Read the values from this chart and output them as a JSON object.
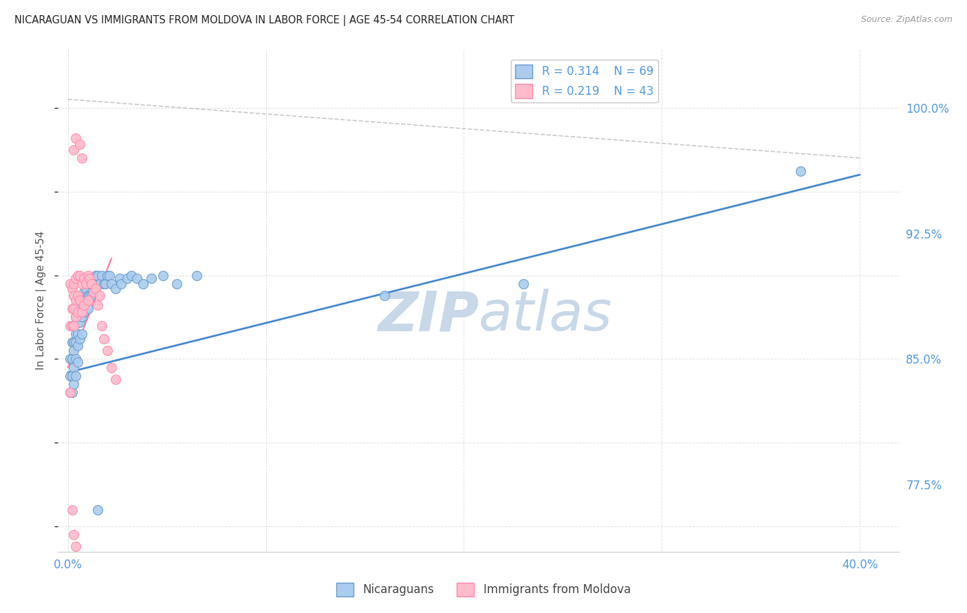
{
  "title": "NICARAGUAN VS IMMIGRANTS FROM MOLDOVA IN LABOR FORCE | AGE 45-54 CORRELATION CHART",
  "source": "Source: ZipAtlas.com",
  "ylabel": "In Labor Force | Age 45-54",
  "yticks": [
    0.775,
    0.85,
    0.925,
    1.0
  ],
  "ytick_labels": [
    "77.5%",
    "85.0%",
    "92.5%",
    "100.0%"
  ],
  "xticks": [
    0.0,
    0.1,
    0.2,
    0.3,
    0.4
  ],
  "xtick_labels": [
    "0.0%",
    "",
    "",
    "",
    "40.0%"
  ],
  "xlim": [
    -0.005,
    0.42
  ],
  "ylim": [
    0.735,
    1.035
  ],
  "nicaraguan_color": "#AACCEE",
  "nicaragua_edge_color": "#6699CC",
  "moldova_color": "#FFBBCC",
  "moldova_edge_color": "#FF88AA",
  "trend_nicaraguan_color": "#4488CC",
  "trend_moldova_color": "#FF88AA",
  "trend_diagonal_color": "#BBBBBB",
  "legend_R_nicaraguan": "R = 0.314",
  "legend_N_nicaraguan": "N = 69",
  "legend_R_moldova": "R = 0.219",
  "legend_N_moldova": "N = 43",
  "nicaraguan_x": [
    0.001,
    0.001,
    0.001,
    0.002,
    0.002,
    0.002,
    0.002,
    0.003,
    0.003,
    0.003,
    0.003,
    0.003,
    0.004,
    0.004,
    0.004,
    0.004,
    0.004,
    0.005,
    0.005,
    0.005,
    0.005,
    0.005,
    0.006,
    0.006,
    0.006,
    0.006,
    0.007,
    0.007,
    0.007,
    0.007,
    0.008,
    0.008,
    0.008,
    0.009,
    0.009,
    0.01,
    0.01,
    0.01,
    0.011,
    0.011,
    0.012,
    0.012,
    0.013,
    0.013,
    0.014,
    0.014,
    0.015,
    0.016,
    0.017,
    0.018,
    0.019,
    0.02,
    0.021,
    0.022,
    0.024,
    0.026,
    0.027,
    0.03,
    0.032,
    0.035,
    0.038,
    0.042,
    0.048,
    0.055,
    0.065,
    0.16,
    0.23,
    0.37,
    0.015
  ],
  "nicaraguan_y": [
    0.85,
    0.84,
    0.83,
    0.86,
    0.85,
    0.84,
    0.83,
    0.87,
    0.86,
    0.855,
    0.845,
    0.835,
    0.875,
    0.865,
    0.86,
    0.85,
    0.84,
    0.882,
    0.872,
    0.865,
    0.858,
    0.848,
    0.886,
    0.878,
    0.872,
    0.862,
    0.888,
    0.882,
    0.875,
    0.865,
    0.89,
    0.885,
    0.878,
    0.892,
    0.885,
    0.895,
    0.888,
    0.88,
    0.895,
    0.888,
    0.895,
    0.888,
    0.898,
    0.89,
    0.9,
    0.892,
    0.9,
    0.895,
    0.9,
    0.895,
    0.895,
    0.9,
    0.9,
    0.895,
    0.892,
    0.898,
    0.895,
    0.898,
    0.9,
    0.898,
    0.895,
    0.898,
    0.9,
    0.895,
    0.9,
    0.888,
    0.895,
    0.962,
    0.76
  ],
  "moldova_x": [
    0.001,
    0.001,
    0.001,
    0.002,
    0.002,
    0.002,
    0.003,
    0.003,
    0.003,
    0.003,
    0.004,
    0.004,
    0.004,
    0.005,
    0.005,
    0.005,
    0.006,
    0.006,
    0.007,
    0.007,
    0.008,
    0.008,
    0.009,
    0.01,
    0.01,
    0.011,
    0.012,
    0.013,
    0.014,
    0.015,
    0.016,
    0.017,
    0.018,
    0.02,
    0.022,
    0.024,
    0.003,
    0.004,
    0.006,
    0.007,
    0.002,
    0.003,
    0.004
  ],
  "moldova_y": [
    0.83,
    0.87,
    0.895,
    0.87,
    0.892,
    0.88,
    0.888,
    0.895,
    0.88,
    0.87,
    0.898,
    0.885,
    0.875,
    0.9,
    0.888,
    0.878,
    0.9,
    0.885,
    0.895,
    0.878,
    0.898,
    0.882,
    0.895,
    0.9,
    0.885,
    0.898,
    0.895,
    0.89,
    0.892,
    0.882,
    0.888,
    0.87,
    0.862,
    0.855,
    0.845,
    0.838,
    0.975,
    0.982,
    0.978,
    0.97,
    0.76,
    0.745,
    0.738
  ],
  "axis_label_color": "#5599DD",
  "grid_color": "#DDDDDD",
  "watermark_color": "#C8D8E8",
  "bottom_legend_labels": [
    "Nicaraguans",
    "Immigrants from Moldova"
  ]
}
